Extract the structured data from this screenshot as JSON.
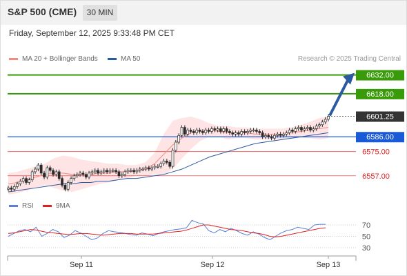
{
  "header": {
    "symbol": "S&P 500 (CME)",
    "interval": "30 MIN"
  },
  "datetime": "Friday, September 12, 2025 9:33:48 PM CET",
  "legend": {
    "ma20": {
      "label": "MA 20 + Bollinger Bands",
      "color": "#f28b82"
    },
    "ma50": {
      "label": "MA 50",
      "color": "#2c5aa0"
    },
    "credit": "Research © 2025 Trading Central"
  },
  "rsi_legend": {
    "rsi": {
      "label": "RSI",
      "color": "#5b7fd6"
    },
    "ma9": {
      "label": "9MA",
      "color": "#e02020"
    }
  },
  "chart_data": [
    {
      "type": "candlestick",
      "title": "S&P 500 (CME) 30 MIN",
      "ylim": [
        6543,
        6640
      ],
      "x_tick_labels": [
        "Sep 11",
        "Sep 12",
        "Sep 13"
      ],
      "levels": [
        {
          "value": 6632.0,
          "label": "6632.00",
          "kind": "target",
          "color": "#3a9b0a"
        },
        {
          "value": 6618.0,
          "label": "6618.00",
          "kind": "target",
          "color": "#3a9b0a"
        },
        {
          "value": 6601.25,
          "label": "6601.25",
          "kind": "last",
          "color": "#333333"
        },
        {
          "value": 6586.0,
          "label": "6586.00",
          "kind": "pivot",
          "color": "#1a5ad7"
        },
        {
          "value": 6575.0,
          "label": "6575.00",
          "kind": "support",
          "color": "#e02020"
        },
        {
          "value": 6557.0,
          "label": "6557.00",
          "kind": "support",
          "color": "#e02020"
        }
      ],
      "closes": [
        6548,
        6547,
        6549,
        6551,
        6553,
        6555,
        6552,
        6554,
        6560,
        6562,
        6565,
        6559,
        6556,
        6563,
        6561,
        6558,
        6560,
        6555,
        6550,
        6547,
        6552,
        6555,
        6557,
        6558,
        6559,
        6558,
        6556,
        6559,
        6560,
        6561,
        6559,
        6560,
        6561,
        6560,
        6561,
        6561,
        6560,
        6557,
        6558,
        6560,
        6561,
        6561,
        6560,
        6561,
        6562,
        6562,
        6563,
        6562,
        6563,
        6564,
        6564,
        6566,
        6568,
        6567,
        6564,
        6576,
        6582,
        6587,
        6593,
        6588,
        6591,
        6590,
        6589,
        6591,
        6590,
        6589,
        6591,
        6590,
        6592,
        6591,
        6592,
        6590,
        6592,
        6590,
        6589,
        6588,
        6589,
        6588,
        6590,
        6589,
        6590,
        6591,
        6591,
        6590,
        6589,
        6586,
        6587,
        6586,
        6585,
        6587,
        6588,
        6587,
        6588,
        6589,
        6591,
        6590,
        6592,
        6593,
        6591,
        6592,
        6593,
        6591,
        6592,
        6594,
        6595,
        6597,
        6599,
        6601.25
      ],
      "bollinger": {
        "upper": [
          6559,
          6560,
          6562,
          6564,
          6566,
          6570,
          6572,
          6571,
          6569,
          6568,
          6567,
          6566,
          6566,
          6565,
          6565,
          6567,
          6574,
          6588,
          6598,
          6600,
          6601,
          6599,
          6596,
          6594,
          6594,
          6593,
          6593,
          6592,
          6592,
          6592,
          6592,
          6593,
          6595,
          6597,
          6600,
          6601
        ],
        "middle": [
          6551,
          6552,
          6554,
          6556,
          6558,
          6559,
          6559,
          6558,
          6558,
          6558,
          6559,
          6559,
          6560,
          6560,
          6561,
          6562,
          6566,
          6573,
          6580,
          6585,
          6589,
          6591,
          6591,
          6590,
          6589,
          6589,
          6589,
          6588,
          6588,
          6588,
          6588,
          6589,
          6590,
          6591,
          6592,
          6593
        ],
        "lower": [
          6543,
          6544,
          6546,
          6548,
          6550,
          6548,
          6546,
          6545,
          6547,
          6549,
          6551,
          6552,
          6554,
          6555,
          6557,
          6557,
          6558,
          6558,
          6562,
          6570,
          6577,
          6583,
          6586,
          6586,
          6584,
          6585,
          6585,
          6584,
          6584,
          6584,
          6584,
          6585,
          6585,
          6585,
          6584,
          6585
        ]
      },
      "ma50": [
        6545,
        6546,
        6547,
        6548,
        6549,
        6550,
        6551,
        6551,
        6552,
        6552,
        6553,
        6553,
        6554,
        6555,
        6555,
        6556,
        6557,
        6558,
        6560,
        6562,
        6565,
        6568,
        6571,
        6573,
        6575,
        6577,
        6579,
        6581,
        6582,
        6583,
        6584,
        6585,
        6586,
        6587,
        6588,
        6589
      ]
    },
    {
      "type": "line",
      "title": "RSI",
      "ylim": [
        20,
        80
      ],
      "y_tick_labels": [
        "70",
        "50",
        "30"
      ],
      "series": [
        {
          "name": "RSI",
          "values": [
            50,
            55,
            60,
            62,
            58,
            66,
            50,
            55,
            62,
            58,
            48,
            52,
            60,
            56,
            50,
            44,
            47,
            55,
            60,
            58,
            57,
            55,
            53,
            52,
            56,
            54,
            51,
            55,
            58,
            60,
            62,
            63,
            65,
            78,
            74,
            72,
            60,
            56,
            62,
            58,
            64,
            60,
            55,
            52,
            58,
            54,
            48,
            44,
            50,
            56,
            60,
            62,
            66,
            64,
            62,
            70,
            71,
            71
          ]
        },
        {
          "name": "9MA",
          "values": [
            55,
            56,
            58,
            60,
            62,
            61,
            59,
            57,
            56,
            55,
            54,
            53,
            54,
            55,
            55,
            54,
            53,
            52,
            53,
            54,
            55,
            55,
            55,
            54,
            54,
            54,
            54,
            55,
            56,
            57,
            58,
            59,
            61,
            64,
            67,
            70,
            70,
            68,
            66,
            64,
            62,
            61,
            60,
            58,
            56,
            55,
            53,
            50,
            49,
            50,
            52,
            54,
            56,
            58,
            60,
            62,
            64,
            65
          ]
        }
      ]
    }
  ]
}
